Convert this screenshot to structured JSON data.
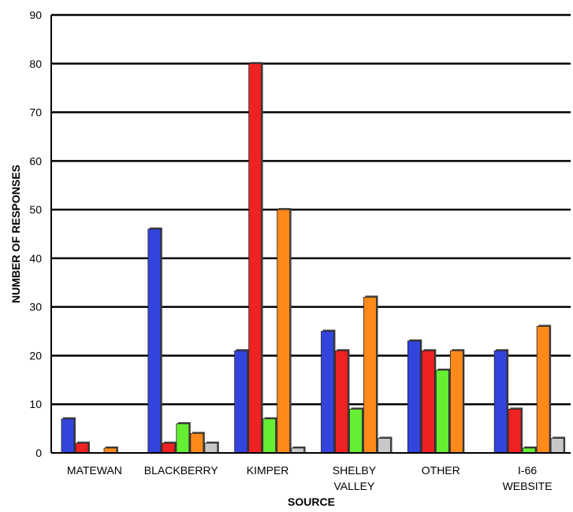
{
  "chart_data": {
    "type": "bar",
    "title": "",
    "xlabel": "SOURCE",
    "ylabel": "NUMBER OF RESPONSES",
    "ylim": [
      0,
      90
    ],
    "yticks": [
      0,
      10,
      20,
      30,
      40,
      50,
      60,
      70,
      80,
      90
    ],
    "grid": true,
    "categories": [
      [
        "MATEWAN"
      ],
      [
        "BLACKBERRY"
      ],
      [
        "KIMPER"
      ],
      [
        "SHELBY",
        "VALLEY"
      ],
      [
        "OTHER"
      ],
      [
        "I-66",
        "WEBSITE"
      ]
    ],
    "series": [
      {
        "color": "#3344dd",
        "values": [
          7,
          46,
          21,
          25,
          23,
          21
        ]
      },
      {
        "color": "#ee2222",
        "values": [
          2,
          2,
          80,
          21,
          21,
          9
        ]
      },
      {
        "color": "#66ee33",
        "values": [
          0,
          6,
          7,
          9,
          17,
          1
        ]
      },
      {
        "color": "#ff8a1a",
        "values": [
          1,
          4,
          50,
          32,
          21,
          26
        ]
      },
      {
        "color": "#c8c8c8",
        "values": [
          0,
          2,
          1,
          3,
          0,
          3
        ]
      }
    ]
  }
}
